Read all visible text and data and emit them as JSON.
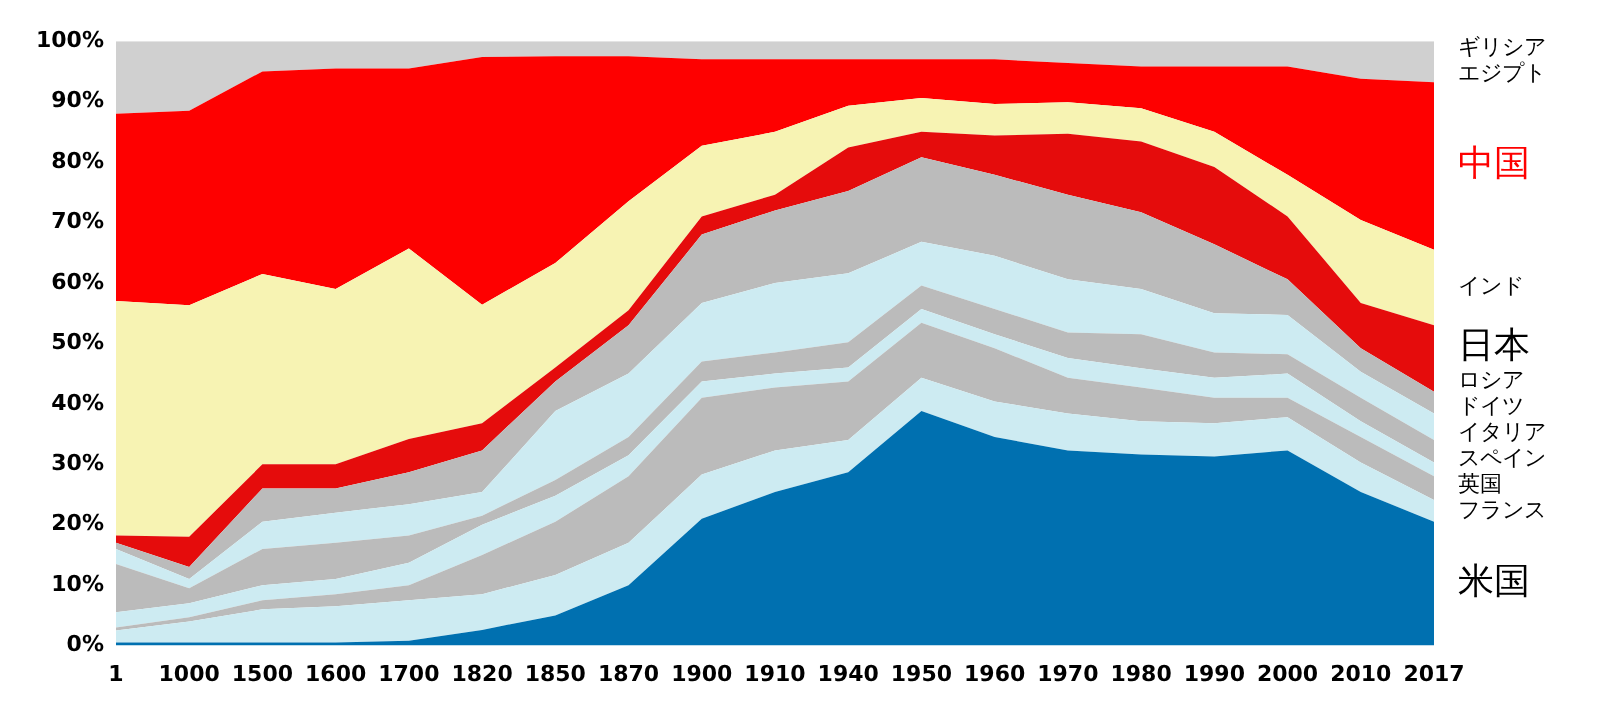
{
  "chart_data": {
    "type": "area",
    "stacked": true,
    "categories": [
      "1",
      "1000",
      "1500",
      "1600",
      "1700",
      "1820",
      "1850",
      "1870",
      "1900",
      "1910",
      "1940",
      "1950",
      "1960",
      "1970",
      "1980",
      "1990",
      "2000",
      "2010",
      "2017"
    ],
    "ylim": [
      0,
      100
    ],
    "yticks": [
      {
        "value": 0,
        "label": "0%"
      },
      {
        "value": 10,
        "label": "10%"
      },
      {
        "value": 20,
        "label": "20%"
      },
      {
        "value": 30,
        "label": "30%"
      },
      {
        "value": 40,
        "label": "40%"
      },
      {
        "value": 50,
        "label": "50%"
      },
      {
        "value": 60,
        "label": "60%"
      },
      {
        "value": 70,
        "label": "70%"
      },
      {
        "value": 80,
        "label": "80%"
      },
      {
        "value": 90,
        "label": "90%"
      },
      {
        "value": 100,
        "label": "100%"
      }
    ],
    "grid": false,
    "legend": false,
    "series": [
      {
        "name": "米国",
        "color": "#0070b0",
        "values": [
          0.5,
          0.5,
          0.5,
          0.5,
          0.8,
          2.6,
          5,
          10,
          21,
          25.4,
          28.7,
          38.8,
          34.5,
          32.3,
          31.6,
          31.3,
          32.3,
          25.4,
          20.5
        ]
      },
      {
        "name": "フランス",
        "color": "#cdebf2",
        "values": [
          2,
          3.5,
          5.5,
          6,
          6.7,
          5.9,
          6.7,
          7,
          7.3,
          6.9,
          5.3,
          5.5,
          5.9,
          6.1,
          5.5,
          5.5,
          5.5,
          4.9,
          3.6
        ]
      },
      {
        "name": "英国",
        "color": "#bbbbbb",
        "values": [
          0.5,
          0.7,
          1.5,
          2,
          2.5,
          6.5,
          8.8,
          11,
          12.7,
          10.4,
          9.7,
          9.1,
          8.8,
          5.9,
          5.6,
          4.2,
          3.2,
          4.2,
          3.9
        ]
      },
      {
        "name": "スペイン",
        "color": "#cdebf2",
        "values": [
          2.5,
          2.3,
          2.5,
          2.5,
          3.7,
          5,
          4.3,
          3.5,
          2.7,
          2.3,
          2.3,
          2.3,
          2.3,
          3.3,
          3.2,
          3.3,
          4,
          2.6,
          2.3
        ]
      },
      {
        "name": "イタリア",
        "color": "#bbbbbb",
        "values": [
          8,
          2.5,
          6,
          6,
          4.5,
          1.5,
          2.6,
          3,
          3.3,
          3.5,
          4.2,
          3.9,
          4.2,
          4.2,
          5.6,
          4.2,
          3.2,
          3.9,
          3.7
        ]
      },
      {
        "name": "ドイツ",
        "color": "#cdebf2",
        "values": [
          2.5,
          1.5,
          4.5,
          5,
          5.2,
          3.9,
          11.4,
          10.5,
          9.7,
          11.5,
          11.4,
          7.2,
          8.8,
          8.8,
          7.5,
          6.5,
          6.5,
          4.3,
          4.4
        ]
      },
      {
        "name": "ロシア",
        "color": "#bbbbbb",
        "values": [
          1,
          2,
          5.5,
          4,
          5.3,
          6.9,
          4.9,
          8,
          11.3,
          12,
          13.6,
          14,
          13.4,
          14,
          12.7,
          11.4,
          5.9,
          3.9,
          3.6
        ]
      },
      {
        "name": "日本",
        "color": "#e50c0c",
        "values": [
          1.2,
          5,
          4,
          4,
          5.5,
          4.5,
          2.3,
          2.5,
          3,
          2.6,
          7.2,
          4.2,
          6.5,
          10.1,
          11.7,
          12.8,
          10.4,
          7.5,
          11
        ]
      },
      {
        "name": "インド",
        "color": "#f7f3b3",
        "values": [
          38.8,
          38.3,
          31.5,
          29,
          31.5,
          19.6,
          17.3,
          18,
          11.7,
          10.4,
          6.9,
          5.6,
          5.2,
          5.2,
          5.5,
          5.8,
          6.9,
          13.7,
          12.5
        ]
      },
      {
        "name": "中国",
        "color": "#fe0000",
        "values": [
          31,
          32.2,
          33.5,
          36.5,
          29.8,
          41,
          34.2,
          24,
          14.3,
          12,
          7.7,
          6.4,
          7.4,
          6.5,
          6.9,
          10.8,
          17.9,
          23.4,
          27.7
        ]
      },
      {
        "name": "ギリシアエジプト",
        "color": "#d0d0d0",
        "values": [
          12,
          11.5,
          5,
          4.5,
          4.5,
          2.6,
          2.5,
          2.5,
          3,
          3,
          3,
          3,
          3,
          3.6,
          4.2,
          4.2,
          4.2,
          6.2,
          6.8
        ]
      }
    ]
  }
}
